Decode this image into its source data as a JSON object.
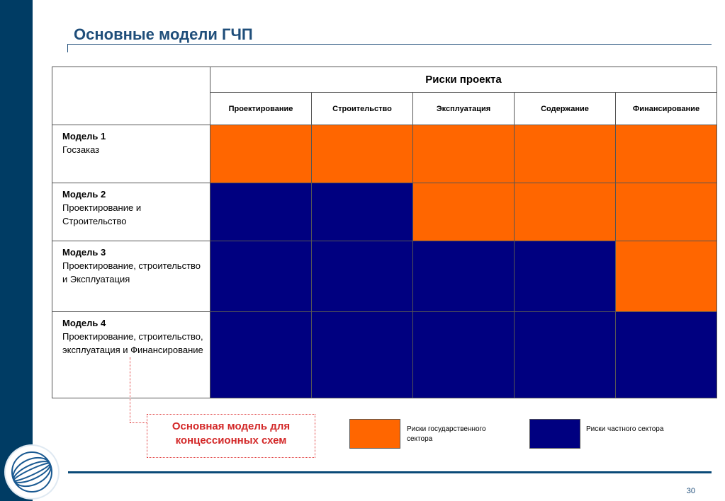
{
  "title": "Основные модели ГЧП",
  "table": {
    "header_main": "Риски проекта",
    "columns": [
      "Проектирование",
      "Строительство",
      "Эксплуатация",
      "Содержание",
      "Финансирование"
    ],
    "rows": [
      {
        "model": "Модель 1",
        "desc": "Госзаказ",
        "cells": [
          "gov",
          "gov",
          "gov",
          "gov",
          "gov"
        ]
      },
      {
        "model": "Модель 2",
        "desc": "Проектирование и Строительство",
        "cells": [
          "priv",
          "priv",
          "gov",
          "gov",
          "gov"
        ]
      },
      {
        "model": "Модель 3",
        "desc": "Проектирование, строительство и Эксплуатация",
        "cells": [
          "priv",
          "priv",
          "priv",
          "priv",
          "gov"
        ]
      },
      {
        "model": "Модель 4",
        "desc": "Проектирование, строительство, эксплуатация и Финансирование",
        "cells": [
          "priv",
          "priv",
          "priv",
          "priv",
          "priv"
        ]
      }
    ]
  },
  "callout": "Основная модель для концессионных схем",
  "legend": {
    "gov_label": "Риски государственного сектора",
    "priv_label": "Риски частного сектора"
  },
  "colors": {
    "gov": "#ff6600",
    "priv": "#000080",
    "sidebar": "#003c64",
    "title": "#1f4e7a",
    "callout": "#d32828"
  },
  "page_number": "30",
  "logo_icon": "globe-logo-icon"
}
